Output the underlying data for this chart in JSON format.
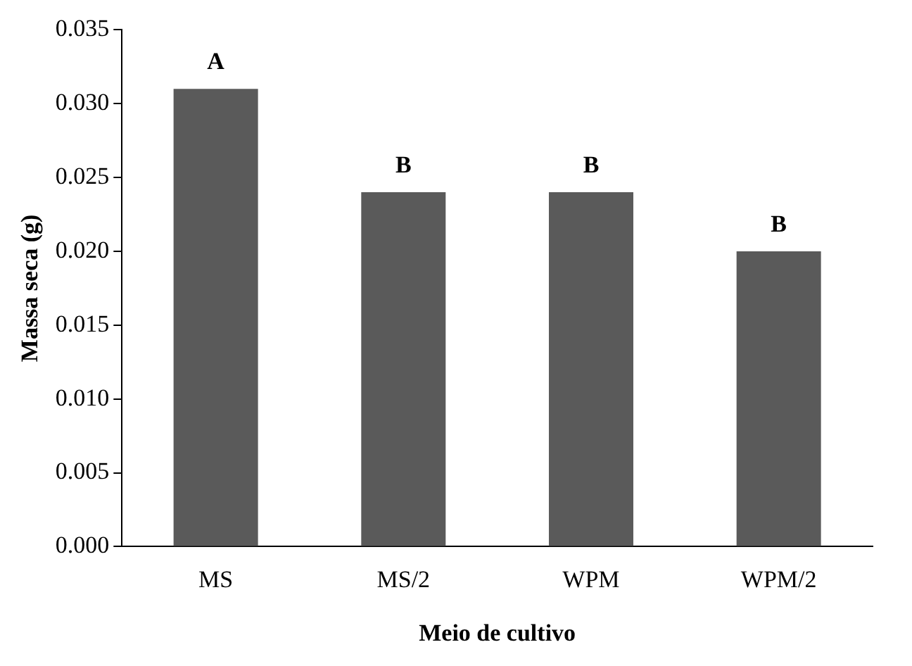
{
  "chart_data": {
    "type": "bar",
    "xlabel": "Meio de cultivo",
    "ylabel": "Massa seca (g)",
    "categories": [
      "MS",
      "MS/2",
      "WPM",
      "WPM/2"
    ],
    "values": [
      0.031,
      0.024,
      0.024,
      0.02
    ],
    "color": "#5a5a5a",
    "ylim": [
      0,
      0.035
    ],
    "yticks": [
      {
        "value": 0,
        "label": "0.000"
      },
      {
        "value": 0.005,
        "label": "0.005"
      },
      {
        "value": 0.01,
        "label": "0.010"
      },
      {
        "value": 0.015,
        "label": "0.015"
      },
      {
        "value": 0.02,
        "label": "0.020"
      },
      {
        "value": 0.025,
        "label": "0.025"
      },
      {
        "value": 0.03,
        "label": "0.030"
      },
      {
        "value": 0.035,
        "label": "0.035"
      }
    ],
    "annotations": [
      {
        "text": "A",
        "x": "MS",
        "y": 0.031
      },
      {
        "text": "B",
        "x": "MS/2",
        "y": 0.024
      },
      {
        "text": "B",
        "x": "WPM",
        "y": 0.024
      },
      {
        "text": "B",
        "x": "WPM/2",
        "y": 0.02
      }
    ],
    "grid": false,
    "legend": false
  }
}
